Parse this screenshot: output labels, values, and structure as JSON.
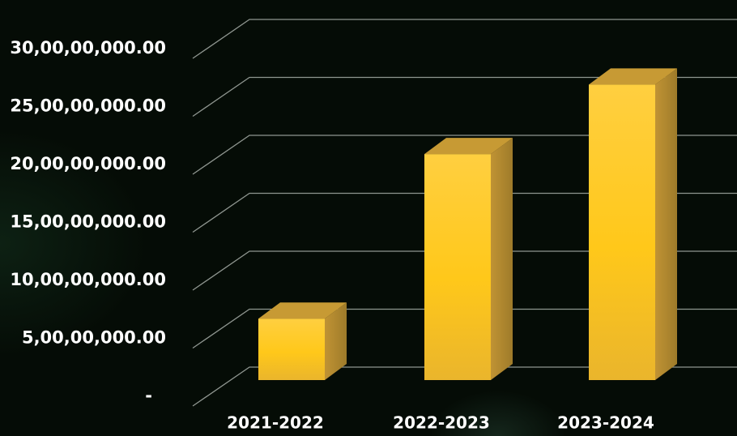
{
  "chart_data": {
    "type": "bar",
    "style": "3d-column",
    "categories": [
      "2021-2022",
      "2022-2023",
      "2023-2024"
    ],
    "values": [
      53000000,
      195000000,
      255000000
    ],
    "y_ticks": [
      {
        "value": 0,
        "label": "-"
      },
      {
        "value": 50000000,
        "label": "5,00,00,000.00"
      },
      {
        "value": 100000000,
        "label": "10,00,00,000.00"
      },
      {
        "value": 150000000,
        "label": "15,00,00,000.00"
      },
      {
        "value": 200000000,
        "label": "20,00,00,000.00"
      },
      {
        "value": 250000000,
        "label": "25,00,00,000.00"
      },
      {
        "value": 300000000,
        "label": "30,00,00,000.00"
      }
    ],
    "ylim": [
      0,
      330000000
    ],
    "grid": true,
    "legend": "none",
    "colors": {
      "background": "#050c06",
      "bar_front_light": "#ffd23a",
      "bar_front_dark": "#e8b826",
      "bar_side": "#b08a2c",
      "bar_top": "#c79a34",
      "grid": "#8f9690",
      "text": "#ffffff"
    }
  }
}
